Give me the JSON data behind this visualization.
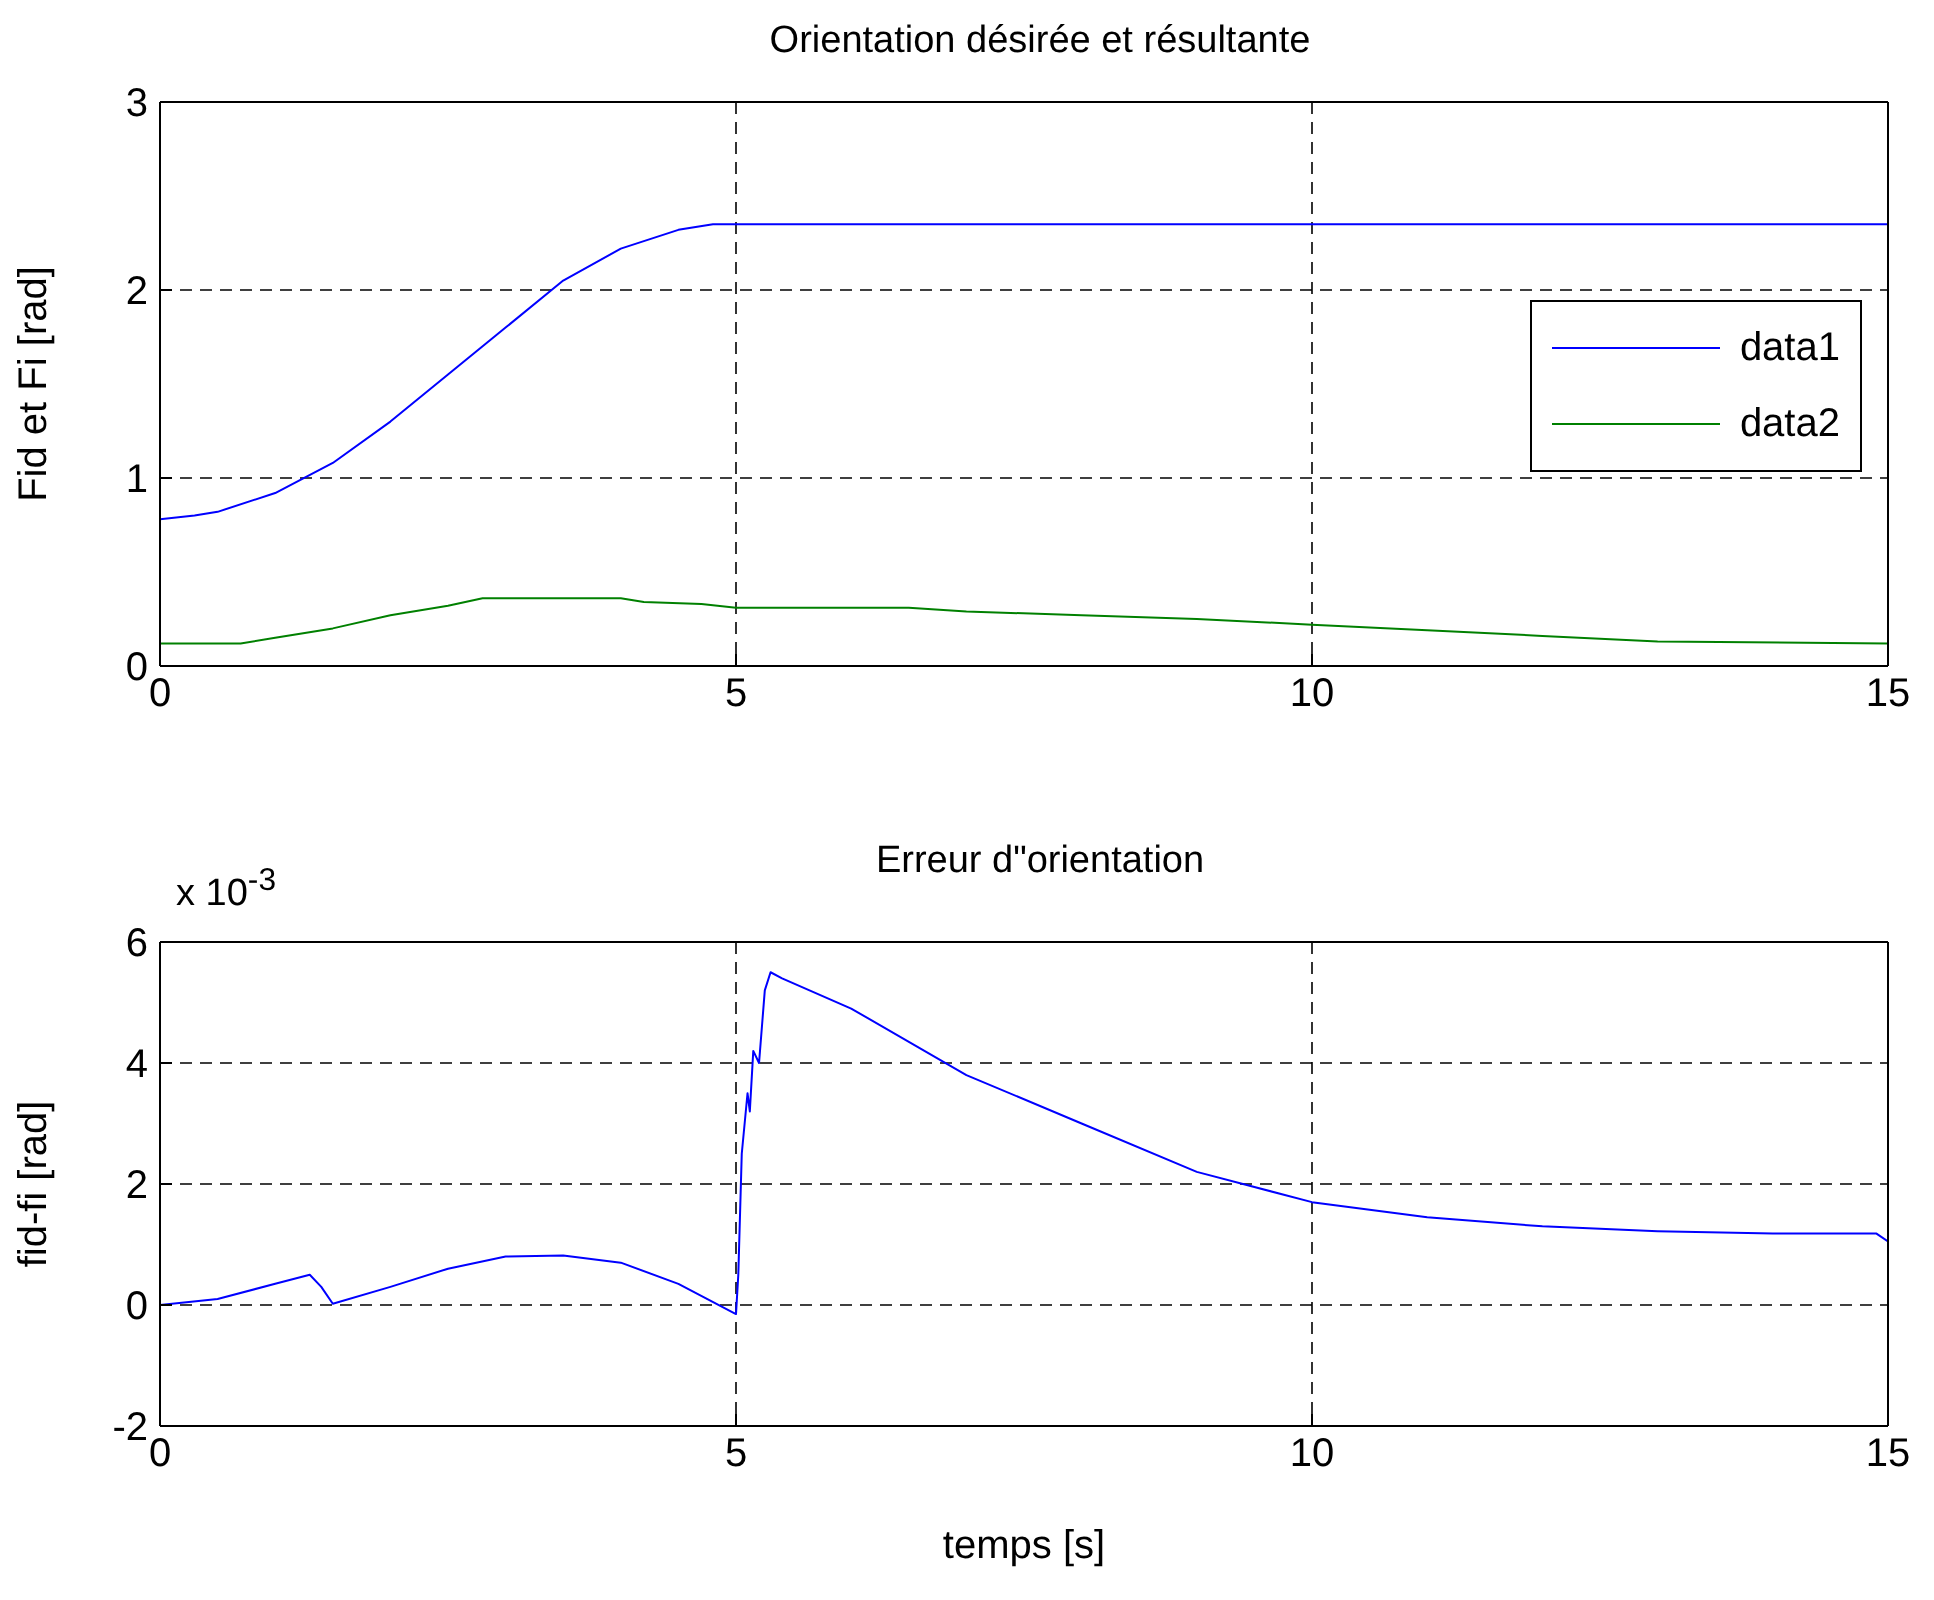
{
  "chart_data": [
    {
      "type": "line",
      "title": "Orientation désirée et résultante",
      "ylabel": "Fid et Fi [rad]",
      "xlim": [
        0,
        15
      ],
      "xticks": [
        0,
        5,
        10,
        15
      ],
      "ylim": [
        0,
        3
      ],
      "yticks": [
        0,
        1,
        2,
        3
      ],
      "grid": true,
      "legend": "right",
      "line_style": "solid",
      "marker": "none",
      "series": [
        {
          "name": "data1",
          "color": "#0000ff",
          "x": [
            0,
            0.3,
            0.5,
            1,
            1.5,
            2,
            2.5,
            3,
            3.5,
            4,
            4.5,
            4.8,
            5,
            10,
            15
          ],
          "values": [
            0.78,
            0.8,
            0.82,
            0.92,
            1.08,
            1.3,
            1.55,
            1.8,
            2.05,
            2.22,
            2.32,
            2.35,
            2.35,
            2.35,
            2.35
          ]
        },
        {
          "name": "data2",
          "color": "#008000",
          "x": [
            0,
            0.7,
            1,
            1.5,
            2,
            2.5,
            2.8,
            3.5,
            4,
            4.2,
            4.7,
            5,
            6.5,
            7,
            8,
            9,
            10,
            11,
            12,
            13,
            15
          ],
          "values": [
            0.12,
            0.12,
            0.15,
            0.2,
            0.27,
            0.32,
            0.36,
            0.36,
            0.36,
            0.34,
            0.33,
            0.31,
            0.31,
            0.29,
            0.27,
            0.25,
            0.22,
            0.19,
            0.16,
            0.13,
            0.12
          ]
        }
      ]
    },
    {
      "type": "line",
      "title": "Erreur d\"orientation",
      "xlabel": "temps [s]",
      "ylabel": "fid-fi [rad]",
      "annotations": [
        "x 10$^{-3}$"
      ],
      "xlim": [
        0,
        15
      ],
      "xticks": [
        0,
        5,
        10,
        15
      ],
      "ylim": [
        -2,
        6
      ],
      "yticks": [
        -2,
        0,
        2,
        4,
        6
      ],
      "grid": true,
      "line_style": "solid",
      "marker": "none",
      "series": [
        {
          "color": "#0000ff",
          "x": [
            0,
            0.5,
            1,
            1.3,
            1.4,
            1.5,
            2,
            2.5,
            3,
            3.5,
            4,
            4.5,
            5,
            5.02,
            5.05,
            5.1,
            5.12,
            5.15,
            5.2,
            5.25,
            5.3,
            5.4,
            6,
            7,
            8,
            9,
            10,
            11,
            12,
            13,
            14,
            14.9,
            15
          ],
          "values": [
            0,
            0.1,
            0.35,
            0.5,
            0.3,
            0.02,
            0.3,
            0.6,
            0.8,
            0.82,
            0.7,
            0.35,
            -0.15,
            0.5,
            2.5,
            3.5,
            3.2,
            4.2,
            4,
            5.2,
            5.5,
            5.4,
            4.9,
            3.8,
            3,
            2.2,
            1.7,
            1.45,
            1.3,
            1.22,
            1.18,
            1.18,
            1.05
          ]
        }
      ]
    }
  ]
}
